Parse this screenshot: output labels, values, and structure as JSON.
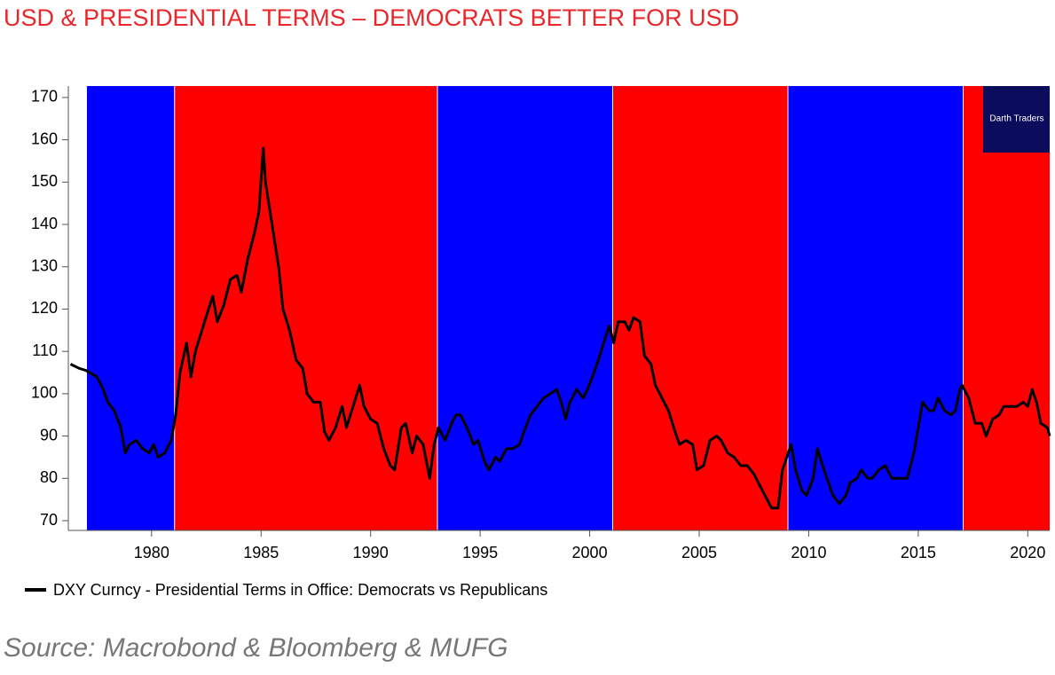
{
  "chart_data": {
    "type": "line",
    "title": "USD & PRESIDENTIAL TERMS – DEMOCRATS BETTER FOR USD",
    "source": "Source: Macrobond & Bloomberg & MUFG",
    "watermark": "Darth Traders",
    "xlim": [
      1976.2,
      2021.0
    ],
    "xticks": [
      1980,
      1985,
      1990,
      1995,
      2000,
      2005,
      2010,
      2015,
      2020
    ],
    "ylim": [
      67.7,
      172.7
    ],
    "yticks": [
      70,
      80,
      90,
      100,
      110,
      120,
      130,
      140,
      150,
      160,
      170
    ],
    "terms": [
      {
        "start": 1977.05,
        "end": 1981.05,
        "color": "#0000ff"
      },
      {
        "start": 1981.05,
        "end": 1993.05,
        "color": "#ff0000"
      },
      {
        "start": 1993.05,
        "end": 2001.05,
        "color": "#0000ff"
      },
      {
        "start": 2001.05,
        "end": 2009.05,
        "color": "#ff0000"
      },
      {
        "start": 2009.05,
        "end": 2017.05,
        "color": "#0000ff"
      },
      {
        "start": 2017.05,
        "end": 2021.0,
        "color": "#ff0000"
      }
    ],
    "series": [
      {
        "name": "DXY Curncy - Presidential Terms in Office: Democrats vs Republicans",
        "color": "#000000",
        "x": [
          1976.3,
          1976.7,
          1977.0,
          1977.5,
          1977.8,
          1978.0,
          1978.3,
          1978.6,
          1978.8,
          1979.0,
          1979.3,
          1979.6,
          1979.9,
          1980.1,
          1980.3,
          1980.6,
          1980.9,
          1981.1,
          1981.3,
          1981.6,
          1981.8,
          1982.0,
          1982.3,
          1982.6,
          1982.8,
          1983.0,
          1983.3,
          1983.6,
          1983.9,
          1984.1,
          1984.4,
          1984.7,
          1984.9,
          1985.1,
          1985.2,
          1985.5,
          1985.8,
          1986.0,
          1986.3,
          1986.6,
          1986.9,
          1987.1,
          1987.4,
          1987.7,
          1987.9,
          1988.1,
          1988.4,
          1988.7,
          1988.9,
          1989.2,
          1989.5,
          1989.7,
          1990.0,
          1990.3,
          1990.6,
          1990.9,
          1991.1,
          1991.4,
          1991.6,
          1991.9,
          1992.1,
          1992.4,
          1992.7,
          1992.9,
          1993.1,
          1993.4,
          1993.7,
          1993.9,
          1994.1,
          1994.4,
          1994.7,
          1994.9,
          1995.2,
          1995.4,
          1995.7,
          1995.9,
          1996.2,
          1996.5,
          1996.8,
          1997.0,
          1997.3,
          1997.6,
          1997.9,
          1998.2,
          1998.5,
          1998.7,
          1998.9,
          1999.1,
          1999.4,
          1999.7,
          1999.9,
          2000.2,
          2000.4,
          2000.7,
          2000.9,
          2001.1,
          2001.3,
          2001.6,
          2001.8,
          2002.0,
          2002.3,
          2002.5,
          2002.8,
          2003.0,
          2003.3,
          2003.6,
          2003.9,
          2004.1,
          2004.4,
          2004.7,
          2004.9,
          2005.2,
          2005.5,
          2005.8,
          2006.0,
          2006.3,
          2006.6,
          2006.9,
          2007.2,
          2007.5,
          2007.8,
          2008.0,
          2008.3,
          2008.6,
          2008.8,
          2009.0,
          2009.2,
          2009.4,
          2009.7,
          2009.9,
          2010.2,
          2010.4,
          2010.7,
          2010.9,
          2011.1,
          2011.4,
          2011.7,
          2011.9,
          2012.2,
          2012.4,
          2012.7,
          2012.9,
          2013.2,
          2013.5,
          2013.8,
          2014.0,
          2014.3,
          2014.5,
          2014.8,
          2015.0,
          2015.2,
          2015.5,
          2015.7,
          2015.9,
          2016.2,
          2016.5,
          2016.7,
          2016.9,
          2017.0,
          2017.3,
          2017.6,
          2017.9,
          2018.1,
          2018.4,
          2018.7,
          2018.9,
          2019.2,
          2019.5,
          2019.8,
          2020.0,
          2020.2,
          2020.4,
          2020.6,
          2020.9,
          2021.0
        ],
        "values": [
          107,
          106,
          105.5,
          104,
          101,
          98,
          96,
          92,
          86,
          88,
          89,
          87,
          86,
          88,
          85,
          86,
          89,
          95,
          105,
          112,
          104,
          110,
          115,
          120,
          123,
          117,
          121,
          127,
          128,
          124,
          132,
          138,
          143,
          158,
          150,
          140,
          130,
          120,
          115,
          108,
          106,
          100,
          98,
          98,
          91,
          89,
          92,
          97,
          92,
          97,
          102,
          97,
          94,
          93,
          87,
          83,
          82,
          92,
          93,
          86,
          90,
          88,
          80,
          88,
          92,
          89,
          93,
          95,
          95,
          92,
          88,
          89,
          84,
          82,
          85,
          84,
          87,
          87,
          88,
          91,
          95,
          97,
          99,
          100,
          101,
          98,
          94,
          98,
          101,
          99,
          101,
          105,
          108,
          113,
          116,
          112,
          117,
          117,
          115,
          118,
          117,
          109,
          107,
          102,
          99,
          96,
          91,
          88,
          89,
          88,
          82,
          83,
          89,
          90,
          89,
          86,
          85,
          83,
          83,
          81,
          78,
          76,
          73,
          73,
          82,
          85,
          88,
          82,
          77,
          76,
          80,
          87,
          82,
          79,
          76,
          74,
          76,
          79,
          80,
          82,
          80,
          80,
          82,
          83,
          80,
          80,
          80,
          80,
          86,
          92,
          98,
          96,
          96,
          99,
          96,
          95,
          96,
          101,
          102,
          99,
          93,
          93,
          90,
          94,
          95,
          97,
          97,
          97,
          98,
          97,
          101,
          98,
          93,
          92,
          90
        ]
      }
    ]
  }
}
